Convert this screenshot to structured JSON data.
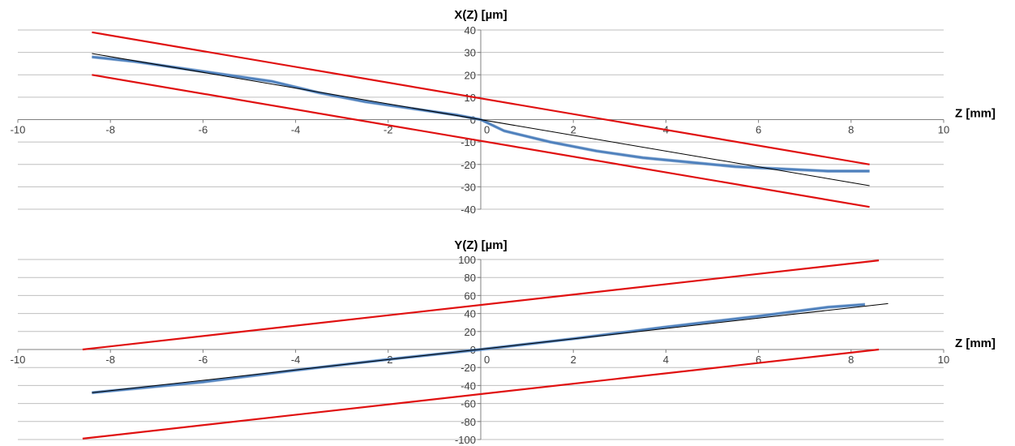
{
  "chart_data": [
    {
      "type": "line",
      "title": "X(Z) [µm]",
      "xlabel": "Z [mm]",
      "ylabel": "",
      "xlim": [
        -10,
        10
      ],
      "ylim": [
        -40,
        40
      ],
      "xticks": [
        -10,
        -8,
        -6,
        -4,
        -2,
        0,
        2,
        4,
        6,
        8,
        10
      ],
      "yticks": [
        -40,
        -30,
        -20,
        -10,
        0,
        10,
        20,
        30,
        40
      ],
      "grid": true,
      "colors": {
        "measured": "#4f81bd",
        "fit": "#000000",
        "tolerance": "#e01010"
      },
      "series": [
        {
          "kind": "measured",
          "x": [
            -8.4,
            -7.5,
            -6.5,
            -5.5,
            -4.5,
            -3.5,
            -2.5,
            -1.5,
            -0.5,
            0,
            0.5,
            1.5,
            2.5,
            3.5,
            4.5,
            5.5,
            6.5,
            7.5,
            8.4
          ],
          "y": [
            28,
            26,
            23,
            20,
            17,
            12,
            8,
            5,
            2,
            0,
            -5,
            -10,
            -14,
            -17,
            -19,
            -21,
            -22,
            -23,
            -23
          ]
        },
        {
          "kind": "fit",
          "x": [
            -8.4,
            8.4
          ],
          "y": [
            29.5,
            -29.5
          ]
        },
        {
          "kind": "tolerance",
          "x": [
            -8.4,
            8.4
          ],
          "y": [
            39,
            -20
          ]
        },
        {
          "kind": "tolerance",
          "x": [
            -8.4,
            8.4
          ],
          "y": [
            20,
            -39
          ]
        }
      ]
    },
    {
      "type": "line",
      "title": "Y(Z) [µm]",
      "xlabel": "Z [mm]",
      "ylabel": "",
      "xlim": [
        -10,
        10
      ],
      "ylim": [
        -100,
        100
      ],
      "xticks": [
        -10,
        -8,
        -6,
        -4,
        -2,
        0,
        2,
        4,
        6,
        8,
        10
      ],
      "yticks": [
        -100,
        -80,
        -60,
        -40,
        -20,
        0,
        20,
        40,
        60,
        80,
        100
      ],
      "grid": true,
      "colors": {
        "measured": "#4f81bd",
        "fit": "#000000",
        "tolerance": "#e01010"
      },
      "series": [
        {
          "kind": "measured",
          "x": [
            -8.4,
            -6,
            -4,
            -2,
            0,
            2,
            4,
            6,
            7.5,
            8.3
          ],
          "y": [
            -48,
            -36,
            -23,
            -11,
            0,
            12,
            25,
            37,
            47,
            50
          ]
        },
        {
          "kind": "fit",
          "x": [
            -8.4,
            8.8
          ],
          "y": [
            -48,
            51
          ]
        },
        {
          "kind": "tolerance",
          "x": [
            -8.6,
            8.6
          ],
          "y": [
            0,
            99
          ]
        },
        {
          "kind": "tolerance",
          "x": [
            -8.6,
            8.6
          ],
          "y": [
            -99,
            0
          ]
        }
      ]
    }
  ]
}
